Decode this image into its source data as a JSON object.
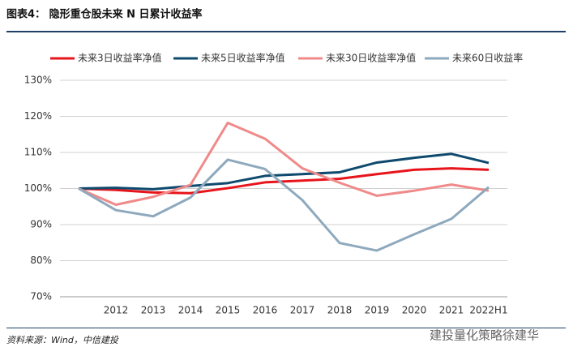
{
  "header": {
    "title": "图表4： 隐形重仓股未来 N 日累计收益率"
  },
  "chart_data": {
    "type": "line",
    "categories": [
      null,
      "2012",
      "2013",
      "2014",
      "2015",
      "2016",
      "2017",
      "2018",
      "2019",
      "2020",
      "2021",
      "2022H1"
    ],
    "series": [
      {
        "name": "未来3日收益率净值",
        "color": "#e8141c",
        "values": [
          100,
          99.6,
          98.9,
          98.7,
          100.1,
          101.7,
          102.2,
          102.7,
          104.0,
          105.2,
          105.6,
          105.2
        ]
      },
      {
        "name": "未来5日收益率净值",
        "color": "#0e4a6e",
        "values": [
          100,
          100.2,
          99.8,
          100.7,
          101.5,
          103.5,
          104.0,
          104.5,
          107.2,
          108.5,
          109.6,
          107.1
        ]
      },
      {
        "name": "未来30日收益率净值",
        "color": "#f08a8a",
        "values": [
          100,
          95.5,
          97.7,
          101.0,
          118.2,
          113.8,
          105.6,
          101.6,
          98.0,
          99.4,
          101.1,
          99.4
        ]
      },
      {
        "name": "未来60日收益率",
        "color": "#8ea9bd",
        "values": [
          100,
          94.0,
          92.3,
          97.5,
          108.0,
          105.4,
          96.8,
          84.9,
          82.8,
          87.3,
          91.6,
          100.4
        ]
      }
    ],
    "ylim": [
      70,
      130
    ],
    "yticks": [
      {
        "value": 70,
        "label": "70%"
      },
      {
        "value": 80,
        "label": "80%"
      },
      {
        "value": 90,
        "label": "90%"
      },
      {
        "value": 100,
        "label": "100%"
      },
      {
        "value": 110,
        "label": "110%"
      },
      {
        "value": 120,
        "label": "120%"
      },
      {
        "value": 130,
        "label": "130%"
      }
    ],
    "grid": true
  },
  "footer": {
    "source": "资料来源：Wind，中信建投",
    "watermark": "建投量化策略徐建华"
  }
}
